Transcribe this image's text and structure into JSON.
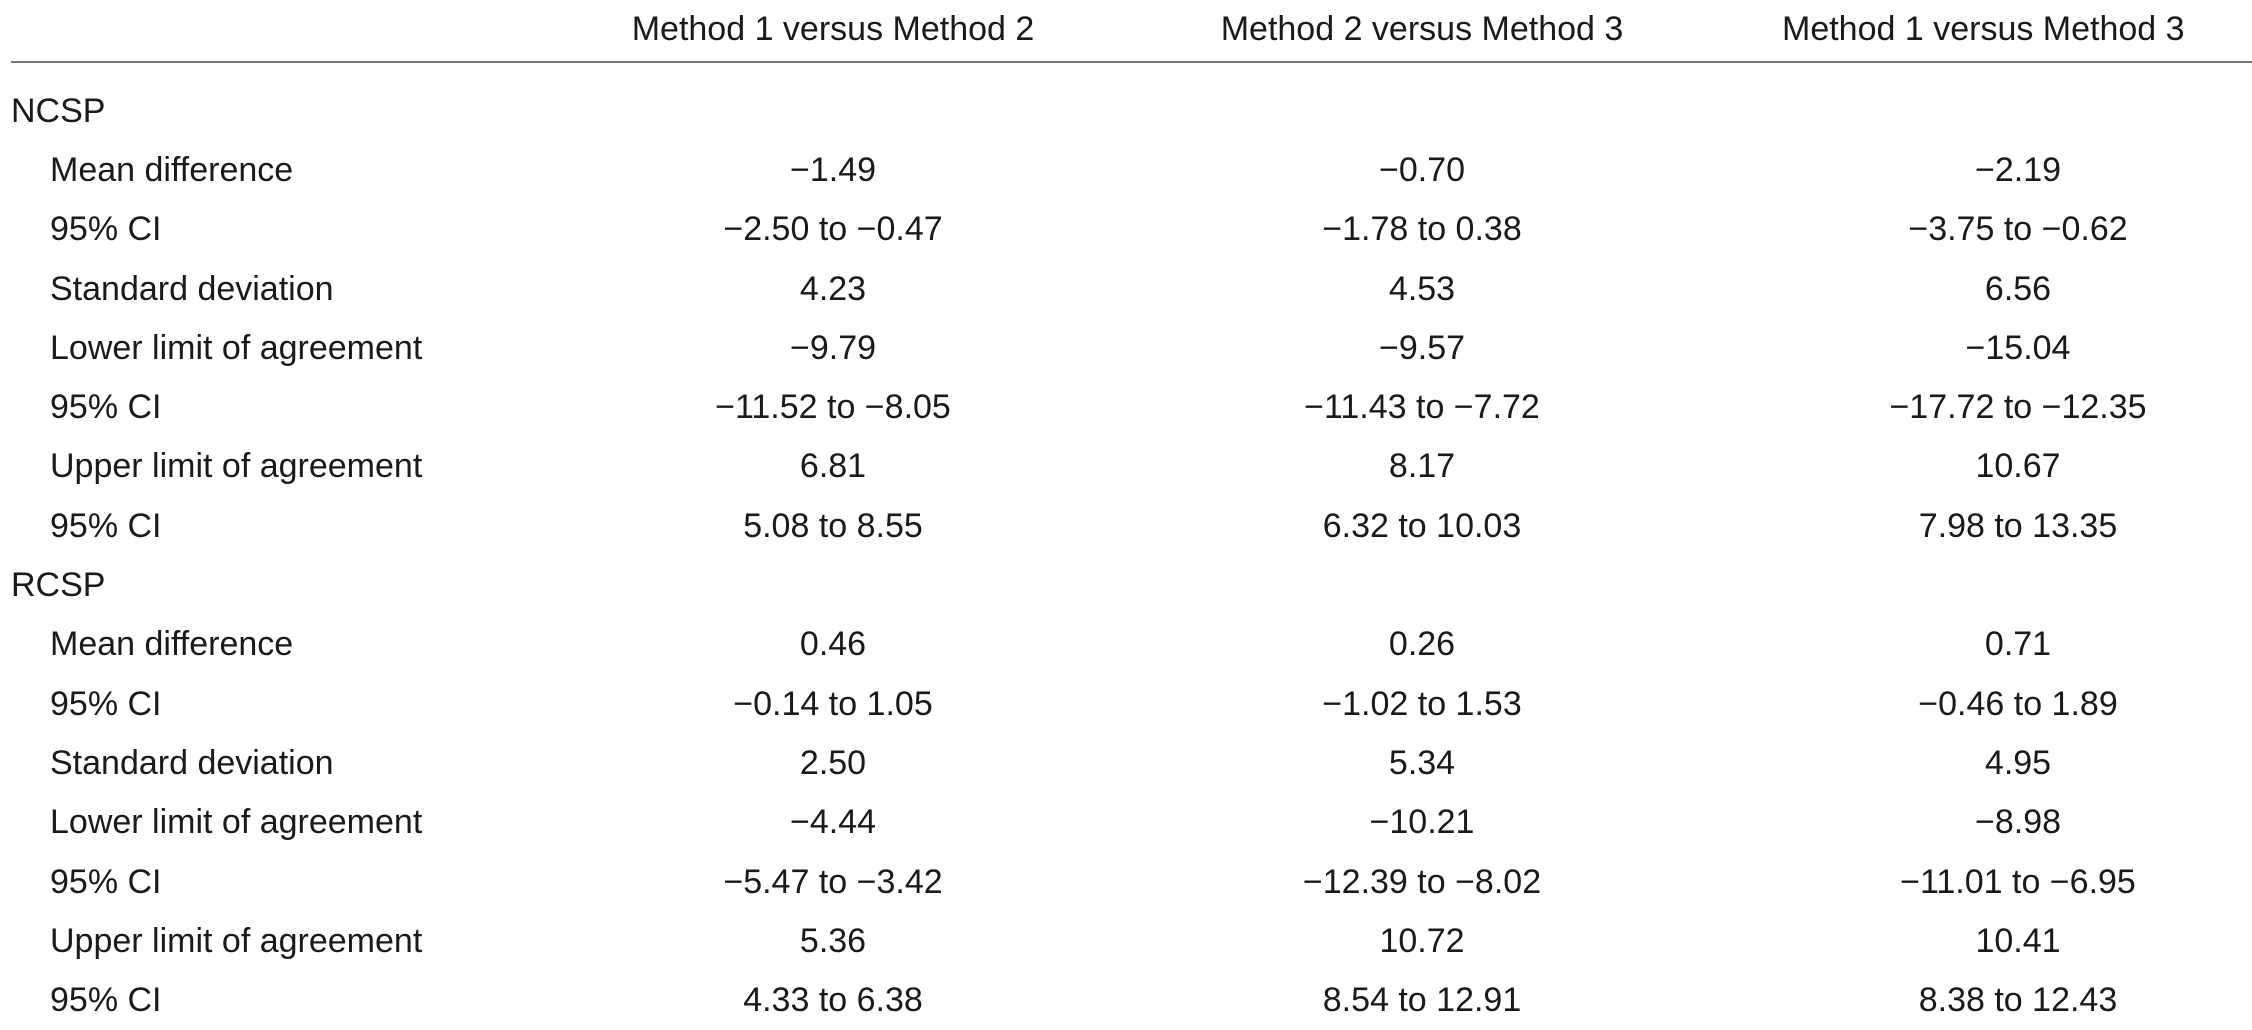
{
  "table": {
    "columns": [
      "Method 1 versus Method 2",
      "Method 2 versus Method 3",
      "Method 1 versus Method 3"
    ],
    "sections": [
      {
        "title": "NCSP",
        "rows": [
          {
            "label": "Mean difference",
            "cells": [
              "−1.49",
              "−0.70",
              "−2.19"
            ]
          },
          {
            "label": "95% CI",
            "cells": [
              "−2.50 to −0.47",
              "−1.78 to 0.38",
              "−3.75 to −0.62"
            ]
          },
          {
            "label": "Standard deviation",
            "cells": [
              "4.23",
              "4.53",
              "6.56"
            ]
          },
          {
            "label": "Lower limit of agreement",
            "cells": [
              "−9.79",
              "−9.57",
              "−15.04"
            ]
          },
          {
            "label": "95% CI",
            "cells": [
              "−11.52 to −8.05",
              "−11.43 to −7.72",
              "−17.72 to −12.35"
            ]
          },
          {
            "label": "Upper limit of agreement",
            "cells": [
              "6.81",
              "8.17",
              "10.67"
            ]
          },
          {
            "label": "95% CI",
            "cells": [
              "5.08 to 8.55",
              "6.32 to 10.03",
              "7.98 to 13.35"
            ]
          }
        ]
      },
      {
        "title": "RCSP",
        "rows": [
          {
            "label": "Mean difference",
            "cells": [
              "0.46",
              "0.26",
              "0.71"
            ]
          },
          {
            "label": "95% CI",
            "cells": [
              "−0.14 to 1.05",
              "−1.02 to 1.53",
              "−0.46 to 1.89"
            ]
          },
          {
            "label": "Standard deviation",
            "cells": [
              "2.50",
              "5.34",
              "4.95"
            ]
          },
          {
            "label": "Lower limit of agreement",
            "cells": [
              "−4.44",
              "−10.21",
              "−8.98"
            ]
          },
          {
            "label": "95% CI",
            "cells": [
              "−5.47 to −3.42",
              "−12.39 to −8.02",
              "−11.01 to −6.95"
            ]
          },
          {
            "label": "Upper limit of agreement",
            "cells": [
              "5.36",
              "10.72",
              "10.41"
            ]
          },
          {
            "label": "95% CI",
            "cells": [
              "4.33 to 6.38",
              "8.54 to 12.91",
              "8.38 to 12.43"
            ]
          }
        ]
      }
    ]
  }
}
